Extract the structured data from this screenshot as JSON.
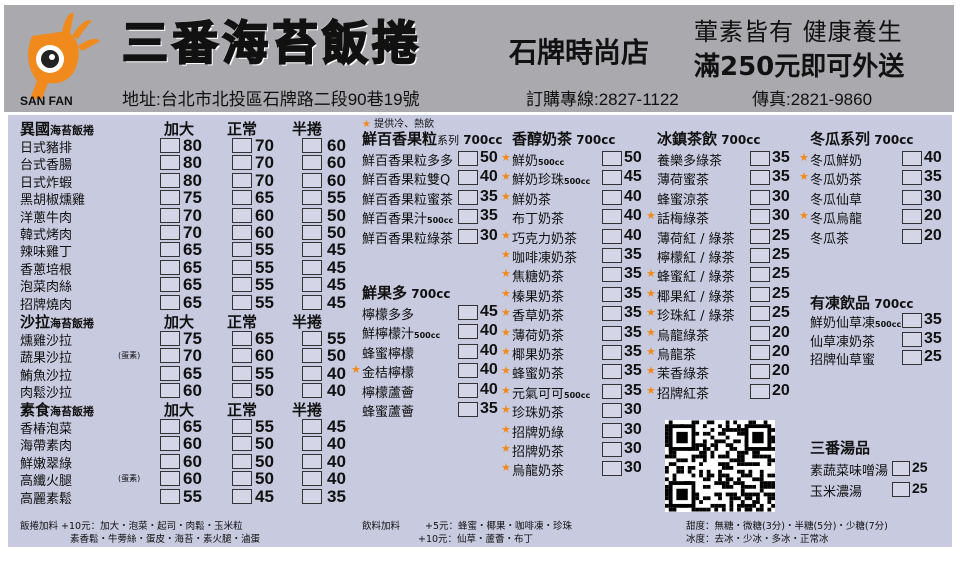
{
  "header": {
    "logo_text": "SAN FAN",
    "brand": "三番海苔飯捲",
    "branch": "石牌時尚店",
    "slogan1": "葷素皆有  健康養生",
    "slogan2": "滿250元即可外送",
    "address": "地址:台北市北投區石牌路二段90巷19號",
    "phone": "訂購專線:2827-1122",
    "fax": "傳真:2821-9860"
  },
  "colors": {
    "accent": "#f08a1c",
    "panel": "#c8cadf",
    "header": "#a9a9ae"
  },
  "rolls": {
    "size_labels": [
      "加大",
      "正常",
      "半捲"
    ],
    "sections": [
      {
        "title": "異國",
        "title_suffix": "海苔飯捲",
        "items": [
          {
            "name": "日式豬排",
            "prices": [
              "80",
              "70",
              "60"
            ]
          },
          {
            "name": "台式香腸",
            "prices": [
              "80",
              "70",
              "60"
            ]
          },
          {
            "name": "日式炸蝦",
            "prices": [
              "80",
              "70",
              "60"
            ]
          },
          {
            "name": "黑胡椒燻雞",
            "prices": [
              "75",
              "65",
              "55"
            ]
          },
          {
            "name": "洋蔥牛肉",
            "prices": [
              "70",
              "60",
              "50"
            ]
          },
          {
            "name": "韓式烤肉",
            "prices": [
              "70",
              "60",
              "50"
            ]
          },
          {
            "name": "辣味雞丁",
            "prices": [
              "65",
              "55",
              "45"
            ]
          },
          {
            "name": "香蔥培根",
            "prices": [
              "65",
              "55",
              "45"
            ]
          },
          {
            "name": "泡菜肉絲",
            "prices": [
              "65",
              "55",
              "45"
            ]
          },
          {
            "name": "招牌燒肉",
            "prices": [
              "65",
              "55",
              "45"
            ]
          }
        ]
      },
      {
        "title": "沙拉",
        "title_suffix": "海苔飯捲",
        "items": [
          {
            "name": "燻雞沙拉",
            "prices": [
              "75",
              "65",
              "55"
            ]
          },
          {
            "name": "蔬果沙拉",
            "note": "(蛋素)",
            "prices": [
              "70",
              "60",
              "50"
            ]
          },
          {
            "name": "鮪魚沙拉",
            "prices": [
              "65",
              "55",
              "40"
            ]
          },
          {
            "name": "肉鬆沙拉",
            "prices": [
              "60",
              "50",
              "40"
            ]
          }
        ]
      },
      {
        "title": "素食",
        "title_suffix": "海苔飯捲",
        "items": [
          {
            "name": "香椿泡菜",
            "prices": [
              "65",
              "55",
              "45"
            ]
          },
          {
            "name": "海帶素肉",
            "prices": [
              "60",
              "50",
              "40"
            ]
          },
          {
            "name": "鮮嫩翠綠",
            "prices": [
              "60",
              "50",
              "40"
            ]
          },
          {
            "name": "高纖火腿",
            "note": "(蛋素)",
            "prices": [
              "60",
              "50",
              "40"
            ]
          },
          {
            "name": "高麗素鬆",
            "prices": [
              "55",
              "45",
              "35"
            ]
          }
        ]
      }
    ]
  },
  "drinks": {
    "legend": "提供冷、熱飲",
    "groups": [
      {
        "title": "鮮百香果粒",
        "title_small": "系列",
        "size": "700cc",
        "items": [
          {
            "name": "鮮百香果粒多多",
            "price": "50"
          },
          {
            "name": "鮮百香果粒雙Q",
            "price": "40"
          },
          {
            "name": "鮮百香果粒蜜茶",
            "price": "35"
          },
          {
            "name": "鮮百香果汁",
            "note": "500cc",
            "price": "35"
          },
          {
            "name": "鮮百香果粒綠茶",
            "price": "30"
          }
        ]
      },
      {
        "title": "鮮果多",
        "size": "700cc",
        "items": [
          {
            "name": "檸檬多多",
            "price": "45"
          },
          {
            "name": "鮮檸檬汁",
            "note": "500cc",
            "price": "40"
          },
          {
            "name": "蜂蜜檸檬",
            "price": "40"
          },
          {
            "name": "金桔檸檬",
            "price": "40",
            "star": true
          },
          {
            "name": "檸檬蘆薈",
            "price": "40"
          },
          {
            "name": "蜂蜜蘆薈",
            "price": "35"
          }
        ]
      },
      {
        "title": "香醇奶茶",
        "size": "700cc",
        "items": [
          {
            "name": "鮮奶",
            "note": "500cc",
            "price": "50",
            "star": true
          },
          {
            "name": "鮮奶珍珠",
            "note": "500cc",
            "price": "45",
            "star": true
          },
          {
            "name": "鮮奶茶",
            "price": "40",
            "star": true
          },
          {
            "name": "布丁奶茶",
            "price": "40"
          },
          {
            "name": "巧克力奶茶",
            "price": "40",
            "star": true
          },
          {
            "name": "咖啡凍奶茶",
            "price": "35",
            "star": true
          },
          {
            "name": "焦糖奶茶",
            "price": "35",
            "star": true
          },
          {
            "name": "榛果奶茶",
            "price": "35",
            "star": true
          },
          {
            "name": "香草奶茶",
            "price": "35",
            "star": true
          },
          {
            "name": "薄荷奶茶",
            "price": "35",
            "star": true
          },
          {
            "name": "椰果奶茶",
            "price": "35",
            "star": true
          },
          {
            "name": "蜂蜜奶茶",
            "price": "35",
            "star": true
          },
          {
            "name": "元氣可可",
            "note": "500cc",
            "price": "35",
            "star": true
          },
          {
            "name": "珍珠奶茶",
            "price": "30",
            "star": true
          },
          {
            "name": "招牌奶綠",
            "price": "30",
            "star": true
          },
          {
            "name": "招牌奶茶",
            "price": "30",
            "star": true
          },
          {
            "name": "烏龍奶茶",
            "price": "30",
            "star": true
          }
        ]
      },
      {
        "title": "冰鎮茶飲",
        "size": "700cc",
        "items": [
          {
            "name": "養樂多綠茶",
            "price": "35"
          },
          {
            "name": "薄荷蜜茶",
            "price": "35"
          },
          {
            "name": "蜂蜜涼茶",
            "price": "30"
          },
          {
            "name": "話梅綠茶",
            "price": "30",
            "star": true
          },
          {
            "name": "薄荷紅 / 綠茶",
            "price": "25"
          },
          {
            "name": "檸檬紅 / 綠茶",
            "price": "25"
          },
          {
            "name": "蜂蜜紅 / 綠茶",
            "price": "25",
            "star": true
          },
          {
            "name": "椰果紅 / 綠茶",
            "price": "25",
            "star": true
          },
          {
            "name": "珍珠紅 / 綠茶",
            "price": "25",
            "star": true
          },
          {
            "name": "烏龍綠茶",
            "price": "20",
            "star": true
          },
          {
            "name": "烏龍茶",
            "price": "20",
            "star": true
          },
          {
            "name": "茉香綠茶",
            "price": "20",
            "star": true
          },
          {
            "name": "招牌紅茶",
            "price": "20",
            "star": true
          }
        ]
      },
      {
        "title": "冬瓜系列",
        "size": "700cc",
        "items": [
          {
            "name": "冬瓜鮮奶",
            "price": "40",
            "star": true
          },
          {
            "name": "冬瓜奶茶",
            "price": "35",
            "star": true
          },
          {
            "name": "冬瓜仙草",
            "price": "30"
          },
          {
            "name": "冬瓜烏龍",
            "price": "20",
            "star": true
          },
          {
            "name": "冬瓜茶",
            "price": "20"
          }
        ]
      },
      {
        "title": "有凍飲品",
        "size": "700cc",
        "items": [
          {
            "name": "鮮奶仙草凍",
            "note": "500cc",
            "price": "35"
          },
          {
            "name": "仙草凍奶茶",
            "price": "35"
          },
          {
            "name": "招牌仙草蜜",
            "price": "25"
          }
        ]
      },
      {
        "title": "三番湯品",
        "size": "",
        "items": [
          {
            "name": "素蔬菜味噌湯",
            "price": "25"
          },
          {
            "name": "玉米濃湯",
            "price": "25"
          }
        ]
      }
    ]
  },
  "footer": {
    "roll_addons_1": "飯捲加料 +10元：加大・泡菜・起司・肉鬆・玉米粒",
    "roll_addons_2": "素香鬆・牛蒡絲・蛋皮・海苔・素火腿・滷蛋",
    "drink_addons_label": "飲料加料",
    "drink_addons_1": "+5元：蜂蜜・椰果・咖啡凍・珍珠",
    "drink_addons_2": "+10元：仙草・蘆薈・布丁",
    "sweetness": "甜度：無糖・微糖(3分)・半糖(5分)・少糖(7分)",
    "ice": "冰度：去冰・少冰・多冰・正常冰"
  }
}
